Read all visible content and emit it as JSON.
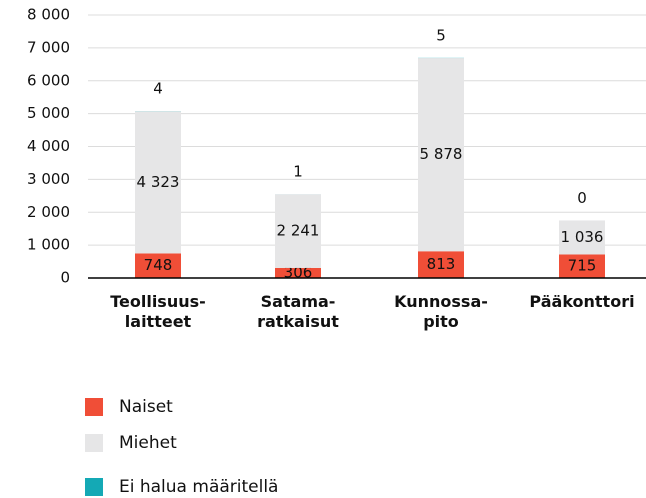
{
  "chart_data": {
    "type": "stacked_bar",
    "categories": [
      [
        "Teollisuus-",
        "laitteet"
      ],
      [
        "Satama-",
        "ratkaisut"
      ],
      [
        "Kunnossa-",
        "pito"
      ],
      [
        "Pääkonttori"
      ]
    ],
    "series": [
      {
        "name": "Naiset",
        "color": "#f04e37",
        "values": [
          748,
          306,
          813,
          715
        ]
      },
      {
        "name": "Miehet",
        "color": "#e6e6e7",
        "values": [
          4323,
          2241,
          5878,
          1036
        ],
        "value_labels": [
          "4 323",
          "2 241",
          "5 878",
          "1 036"
        ]
      },
      {
        "name": "Ei halua määritellä",
        "color": "#14a9b5",
        "values": [
          4,
          1,
          5,
          0
        ]
      }
    ],
    "ylim": [
      0,
      8000
    ],
    "yticks": [
      0,
      {
        "value": 1000,
        "label": "1 000"
      },
      {
        "value": 2000,
        "label": "2 000"
      },
      {
        "value": 3000,
        "label": "3 000"
      },
      {
        "value": 4000,
        "label": "4 000"
      },
      {
        "value": 5000,
        "label": "5 000"
      },
      {
        "value": 6000,
        "label": "6 000"
      },
      {
        "value": 7000,
        "label": "7 000"
      },
      {
        "value": 8000,
        "label": "8 000"
      }
    ],
    "grid": true
  }
}
